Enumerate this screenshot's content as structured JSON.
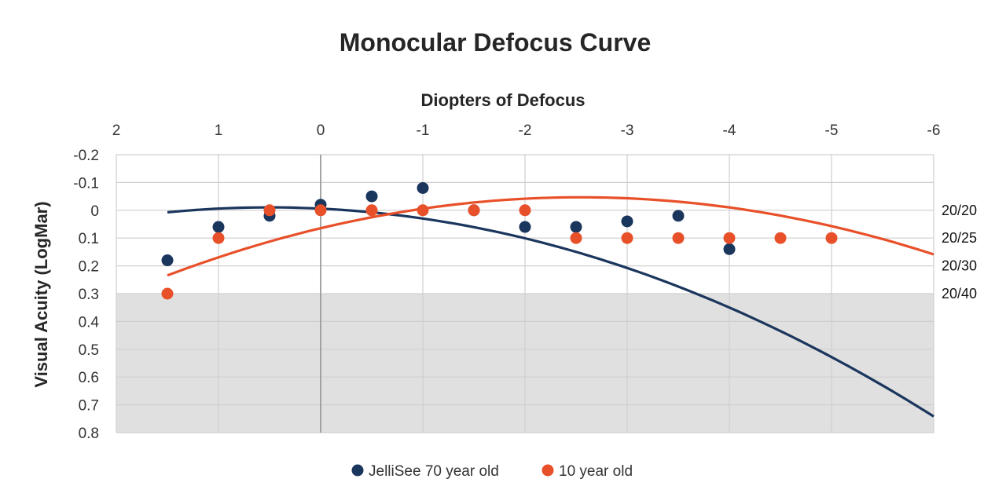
{
  "chart_data": {
    "type": "scatter",
    "title": "Monocular Defocus Curve",
    "xlabel": "Diopters of Defocus",
    "ylabel": "Visual Acuity (LogMar)",
    "x_axis_position": "top",
    "x_reversed": true,
    "y_reversed": true,
    "xlim": [
      2,
      -6
    ],
    "ylim": [
      -0.2,
      0.8
    ],
    "x_ticks": [
      2,
      1,
      0,
      -1,
      -2,
      -3,
      -4,
      -5,
      -6
    ],
    "x_tick_labels": [
      "2",
      "1",
      "0",
      "-1",
      "-2",
      "-3",
      "-4",
      "-5",
      "-6"
    ],
    "y_ticks": [
      -0.2,
      -0.1,
      0,
      0.1,
      0.2,
      0.3,
      0.4,
      0.5,
      0.6,
      0.7,
      0.8
    ],
    "y_tick_labels": [
      "-0.2",
      "-0.1",
      "0",
      "0.1",
      "0.2",
      "0.3",
      "0.4",
      "0.5",
      "0.6",
      "0.7",
      "0.8"
    ],
    "grid": true,
    "shaded_region": {
      "y_from": 0.3,
      "y_to": 0.8,
      "color": "#e0e0e0"
    },
    "acuity_labels": [
      {
        "y": 0,
        "label": "20/20"
      },
      {
        "y": 0.1,
        "label": "20/25"
      },
      {
        "y": 0.2,
        "label": "20/30"
      },
      {
        "y": 0.3,
        "label": "20/40"
      }
    ],
    "legend_position": "bottom",
    "series": [
      {
        "name": "JelliSee 70 year old",
        "color": "#1b365d",
        "points": [
          [
            1.5,
            0.18
          ],
          [
            1,
            0.06
          ],
          [
            0.5,
            0.02
          ],
          [
            0,
            -0.02
          ],
          [
            -0.5,
            -0.05
          ],
          [
            -1,
            -0.08
          ],
          [
            -1.5,
            0
          ],
          [
            -2,
            0.06
          ],
          [
            -2.5,
            0.06
          ],
          [
            -3,
            0.04
          ],
          [
            -3.5,
            0.02
          ],
          [
            -4,
            0.14
          ]
        ],
        "trendline": {
          "type": "polynomial",
          "x_range": [
            1.5,
            -6
          ],
          "coefficients": [
            -0.0059,
            -0.0178,
            0.0178
          ]
        }
      },
      {
        "name": "10 year old",
        "color": "#e8502a",
        "points": [
          [
            1.5,
            0.3
          ],
          [
            1,
            0.1
          ],
          [
            0.5,
            0
          ],
          [
            0,
            0
          ],
          [
            -0.5,
            0
          ],
          [
            -1,
            0
          ],
          [
            -1.5,
            0
          ],
          [
            -2,
            0
          ],
          [
            -2.5,
            0.1
          ],
          [
            -3,
            0.1
          ],
          [
            -3.5,
            0.1
          ],
          [
            -4,
            0.1
          ],
          [
            -4.5,
            0.1
          ],
          [
            -5,
            0.1
          ]
        ],
        "trendline": {
          "type": "polynomial",
          "x_range": [
            1.5,
            -6
          ],
          "coefficients": [
            0.0646,
            0.0875,
            0.0172
          ]
        }
      }
    ]
  }
}
